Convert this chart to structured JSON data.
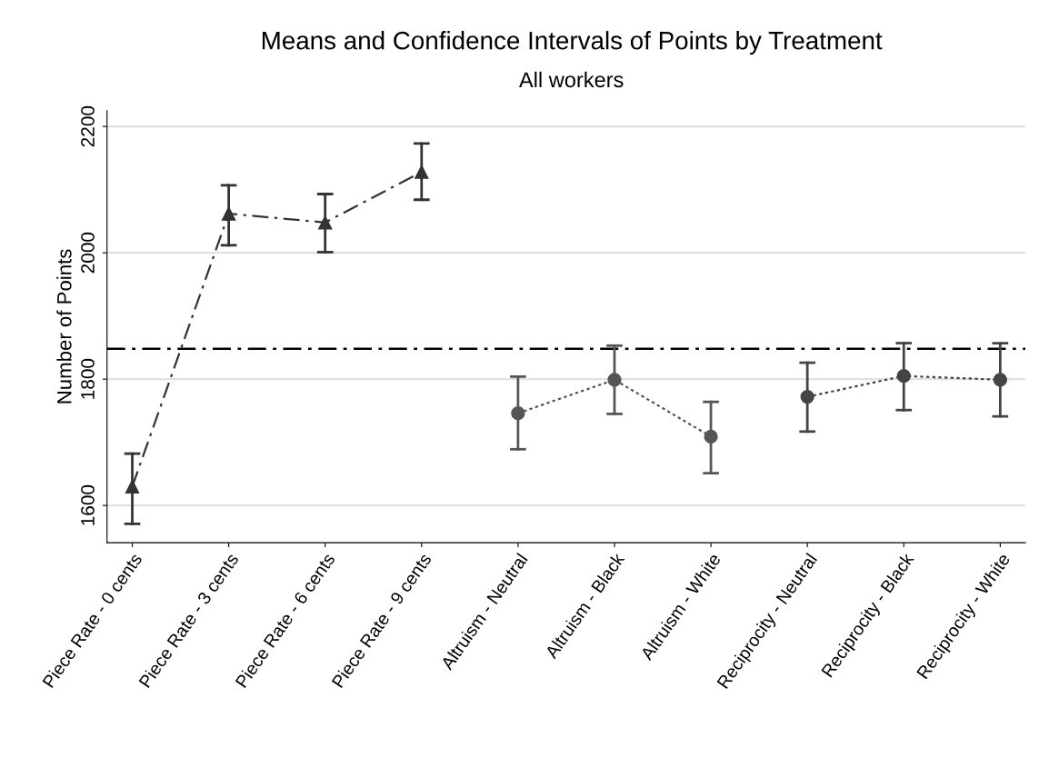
{
  "chart_data": {
    "type": "line",
    "title": "Means and Confidence Intervals of Points by Treatment",
    "subtitle": "All workers",
    "ylabel": "Number of Points",
    "categories": [
      "Piece Rate - 0 cents",
      "Piece Rate - 3 cents",
      "Piece Rate - 6 cents",
      "Piece Rate - 9 cents",
      "Altruism - Neutral",
      "Altruism - Black",
      "Altruism - White",
      "Reciprocity - Neutral",
      "Reciprocity - Black",
      "Reciprocity - White"
    ],
    "series": [
      {
        "color": "#333333",
        "marker": "triangle",
        "line_style": "dashed",
        "values": [
          1630,
          2062,
          2048,
          2128,
          null,
          null,
          null,
          null,
          null,
          null
        ],
        "errors": [
          [
            1571,
            1682
          ],
          [
            2012,
            2107
          ],
          [
            2001,
            2093
          ],
          [
            2084,
            2173
          ],
          null,
          null,
          null,
          null,
          null,
          null
        ]
      },
      {
        "color": "#555555",
        "marker": "circle",
        "line_style": "dotted",
        "values": [
          null,
          null,
          null,
          null,
          1746,
          1799,
          1709,
          null,
          null,
          null
        ],
        "errors": [
          null,
          null,
          null,
          null,
          [
            1689,
            1804
          ],
          [
            1745,
            1853
          ],
          [
            1651,
            1764
          ],
          null,
          null,
          null
        ]
      },
      {
        "color": "#444444",
        "marker": "circle",
        "line_style": "dotted",
        "values": [
          null,
          null,
          null,
          null,
          null,
          null,
          null,
          1772,
          1805,
          1799
        ],
        "errors": [
          null,
          null,
          null,
          null,
          null,
          null,
          null,
          [
            1717,
            1826
          ],
          [
            1751,
            1857
          ],
          [
            1741,
            1857
          ]
        ]
      }
    ],
    "ref_lines": [
      {
        "axis": "y",
        "value": 1848,
        "color": "#000000",
        "line_style": "dashed"
      }
    ],
    "ylim": [
      1541,
      2225
    ],
    "yticks": [
      1600,
      1800,
      2000,
      2200
    ],
    "grid": "y",
    "legend": false
  }
}
